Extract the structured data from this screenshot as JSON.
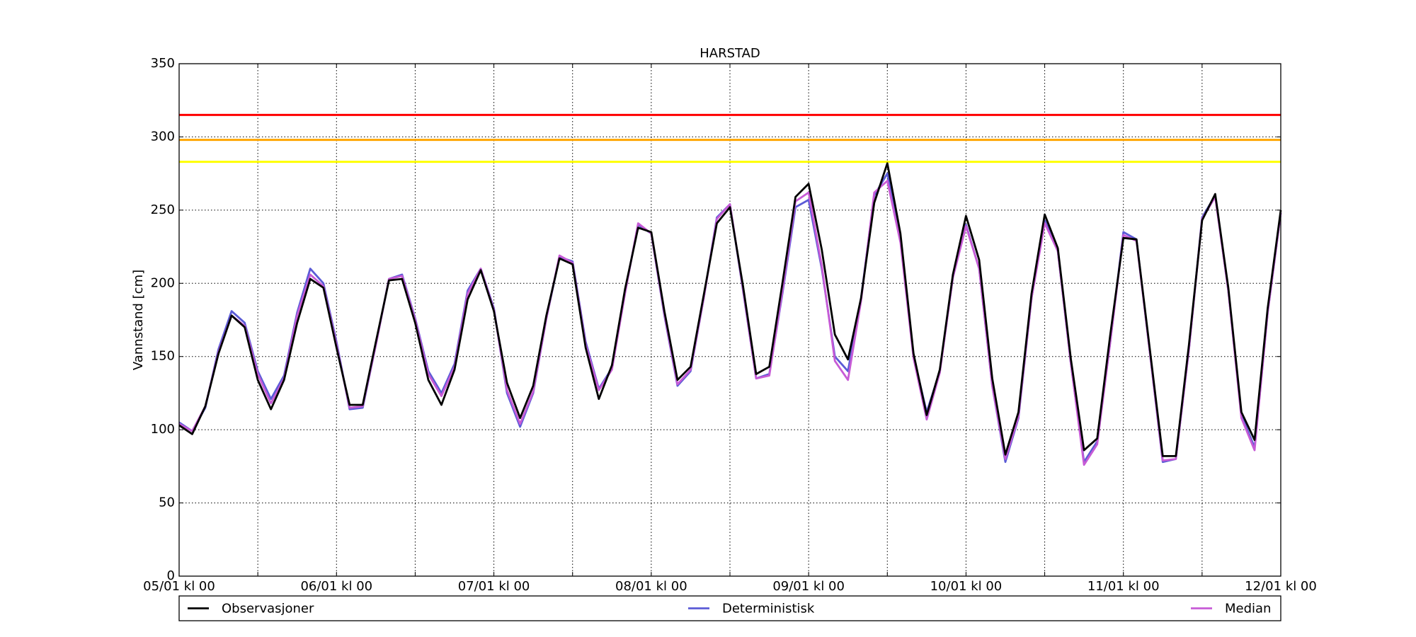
{
  "chart_data": {
    "type": "line",
    "title": "HARSTAD",
    "ylabel": "Vannstand [cm]",
    "x": [
      "05/01 kl 00",
      "05/01 kl 02",
      "05/01 kl 04",
      "05/01 kl 06",
      "05/01 kl 08",
      "05/01 kl 10",
      "05/01 kl 12",
      "05/01 kl 14",
      "05/01 kl 16",
      "05/01 kl 18",
      "05/01 kl 20",
      "05/01 kl 22",
      "06/01 kl 00",
      "06/01 kl 02",
      "06/01 kl 04",
      "06/01 kl 06",
      "06/01 kl 08",
      "06/01 kl 10",
      "06/01 kl 12",
      "06/01 kl 14",
      "06/01 kl 16",
      "06/01 kl 18",
      "06/01 kl 20",
      "06/01 kl 22",
      "07/01 kl 00",
      "07/01 kl 02",
      "07/01 kl 04",
      "07/01 kl 06",
      "07/01 kl 08",
      "07/01 kl 10",
      "07/01 kl 12",
      "07/01 kl 14",
      "07/01 kl 16",
      "07/01 kl 18",
      "07/01 kl 20",
      "07/01 kl 22",
      "08/01 kl 00",
      "08/01 kl 02",
      "08/01 kl 04",
      "08/01 kl 06",
      "08/01 kl 08",
      "08/01 kl 10",
      "08/01 kl 12",
      "08/01 kl 14",
      "08/01 kl 16",
      "08/01 kl 18",
      "08/01 kl 20",
      "08/01 kl 22",
      "09/01 kl 00",
      "09/01 kl 02",
      "09/01 kl 04",
      "09/01 kl 06",
      "09/01 kl 08",
      "09/01 kl 10",
      "09/01 kl 12",
      "09/01 kl 14",
      "09/01 kl 16",
      "09/01 kl 18",
      "09/01 kl 20",
      "09/01 kl 22",
      "10/01 kl 00",
      "10/01 kl 02",
      "10/01 kl 04",
      "10/01 kl 06",
      "10/01 kl 08",
      "10/01 kl 10",
      "10/01 kl 12",
      "10/01 kl 14",
      "10/01 kl 16",
      "10/01 kl 18",
      "10/01 kl 20",
      "10/01 kl 22",
      "11/01 kl 00",
      "11/01 kl 02",
      "11/01 kl 04",
      "11/01 kl 06",
      "11/01 kl 08",
      "11/01 kl 10",
      "11/01 kl 12",
      "11/01 kl 14",
      "11/01 kl 16",
      "11/01 kl 18",
      "11/01 kl 20",
      "11/01 kl 22",
      "12/01 kl 00"
    ],
    "series": [
      {
        "name": "Deterministisk",
        "color": "#5b5bd6",
        "values": [
          105,
          99,
          115,
          155,
          181,
          173,
          140,
          121,
          137,
          180,
          210,
          200,
          160,
          114,
          115,
          158,
          203,
          206,
          176,
          140,
          125,
          145,
          195,
          210,
          183,
          125,
          102,
          125,
          176,
          218,
          215,
          160,
          128,
          142,
          194,
          240,
          234,
          178,
          130,
          140,
          190,
          245,
          254,
          195,
          135,
          138,
          193,
          252,
          257,
          210,
          150,
          140,
          190,
          260,
          275,
          230,
          150,
          112,
          140,
          204,
          240,
          210,
          130,
          78,
          108,
          190,
          243,
          222,
          145,
          78,
          92,
          160,
          235,
          230,
          154,
          78,
          80,
          155,
          245,
          260,
          195,
          110,
          88,
          180,
          248
        ]
      },
      {
        "name": "Median",
        "color": "#c75bd6",
        "values": [
          104,
          99,
          116,
          153,
          178,
          171,
          138,
          118,
          135,
          178,
          206,
          198,
          158,
          115,
          116,
          158,
          203,
          205,
          175,
          138,
          123,
          143,
          193,
          210,
          182,
          127,
          104,
          126,
          176,
          219,
          214,
          158,
          127,
          141,
          193,
          241,
          234,
          179,
          131,
          141,
          190,
          244,
          254,
          196,
          135,
          137,
          195,
          256,
          262,
          212,
          147,
          134,
          188,
          262,
          270,
          228,
          149,
          107,
          139,
          204,
          239,
          210,
          130,
          80,
          109,
          190,
          241,
          222,
          145,
          76,
          90,
          160,
          233,
          229,
          154,
          79,
          80,
          155,
          244,
          259,
          195,
          108,
          86,
          180,
          248
        ]
      },
      {
        "name": "Observasjoner",
        "color": "#000000",
        "values": [
          103,
          97,
          116,
          152,
          178,
          170,
          134,
          114,
          134,
          173,
          203,
          197,
          156,
          117,
          117,
          160,
          202,
          203,
          173,
          134,
          117,
          141,
          189,
          209,
          181,
          132,
          108,
          130,
          178,
          217,
          213,
          156,
          121,
          144,
          196,
          238,
          235,
          181,
          134,
          143,
          192,
          241,
          252,
          198,
          138,
          143,
          200,
          259,
          268,
          223,
          165,
          148,
          190,
          255,
          282,
          234,
          152,
          110,
          141,
          206,
          246,
          216,
          135,
          83,
          112,
          193,
          247,
          224,
          148,
          86,
          94,
          165,
          231,
          230,
          156,
          82,
          82,
          158,
          243,
          261,
          197,
          112,
          93,
          183,
          250
        ]
      }
    ],
    "legend_order": [
      2,
      0,
      1
    ],
    "hlines": [
      {
        "value": 315,
        "color": "#ff0000"
      },
      {
        "value": 298,
        "color": "#ffa500"
      },
      {
        "value": 283,
        "color": "#ffff00"
      }
    ],
    "xlim": [
      "05/01 kl 00",
      "12/01 kl 00"
    ],
    "xticks": [
      "05/01 kl 00",
      "06/01 kl 00",
      "07/01 kl 00",
      "08/01 kl 00",
      "09/01 kl 00",
      "10/01 kl 00",
      "11/01 kl 00",
      "12/01 kl 00"
    ],
    "x_minor_ticks": [
      "05/01 kl 12",
      "06/01 kl 12",
      "07/01 kl 12",
      "08/01 kl 12",
      "09/01 kl 12",
      "10/01 kl 12",
      "11/01 kl 12"
    ],
    "ylim": [
      0,
      350
    ],
    "yticks": [
      0,
      50,
      100,
      150,
      200,
      250,
      300,
      350
    ],
    "grid": true,
    "legend": "bottom"
  }
}
